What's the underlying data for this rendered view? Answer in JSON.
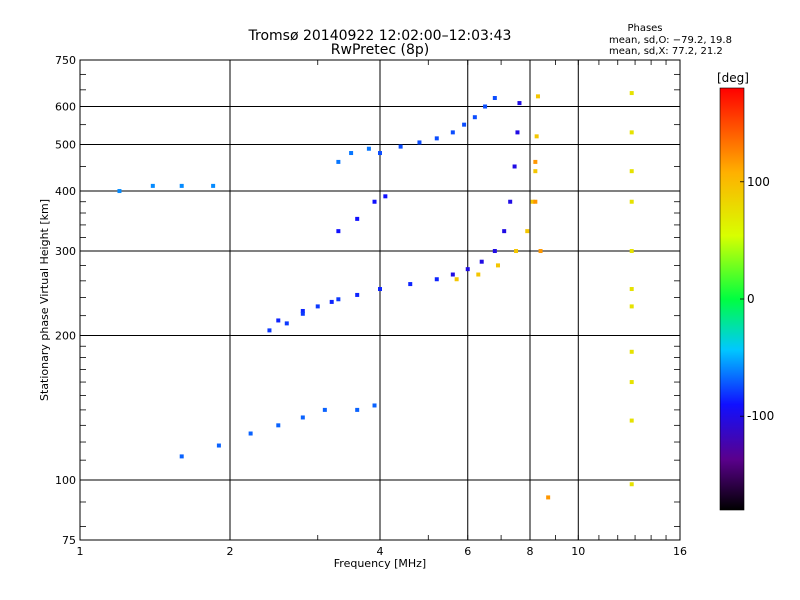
{
  "chart_data": {
    "type": "scatter",
    "title": "Tromsø 20140922 12:02:00–12:03:43",
    "subtitle": "RwPretec (8p)",
    "stats": {
      "heading": "Phases",
      "line_o": "mean, sd,O: −79.2, 19.8",
      "line_x": "mean, sd,X:  77.2, 21.2"
    },
    "xlabel": "Frequency [MHz]",
    "ylabel": "Stationary phase Virtual Height [km]",
    "xscale": "log",
    "yscale": "log",
    "xlim": [
      1,
      16
    ],
    "ylim": [
      75,
      750
    ],
    "xticks": [
      1,
      2,
      4,
      6,
      8,
      10,
      16
    ],
    "xtick_labels": [
      "1",
      "2",
      "4",
      "6",
      "8",
      "10",
      "16"
    ],
    "yticks": [
      75,
      100,
      200,
      300,
      400,
      500,
      600,
      750
    ],
    "ytick_labels": [
      "75",
      "100",
      "200",
      "300",
      "400",
      "500",
      "600",
      "750"
    ],
    "grid": true,
    "colorbar": {
      "label": "[deg]",
      "range": [
        -180,
        180
      ],
      "ticks": [
        100,
        0,
        -100
      ],
      "tick_labels": [
        "100",
        "0",
        "-100"
      ]
    },
    "series": [
      {
        "color_deg": -75,
        "points": [
          [
            4.0,
            480
          ],
          [
            4.4,
            495
          ],
          [
            4.8,
            505
          ],
          [
            5.2,
            515
          ],
          [
            5.6,
            530
          ],
          [
            5.9,
            550
          ],
          [
            6.2,
            570
          ],
          [
            6.5,
            600
          ],
          [
            6.8,
            625
          ]
        ]
      },
      {
        "color_deg": -100,
        "points": [
          [
            5.6,
            268
          ],
          [
            6.0,
            275
          ],
          [
            6.4,
            285
          ],
          [
            6.8,
            300
          ],
          [
            7.1,
            330
          ],
          [
            7.3,
            380
          ],
          [
            7.45,
            450
          ],
          [
            7.55,
            530
          ],
          [
            7.62,
            610
          ]
        ]
      },
      {
        "color_deg": 95,
        "points": [
          [
            5.7,
            262
          ],
          [
            6.3,
            268
          ],
          [
            6.9,
            280
          ],
          [
            7.5,
            300
          ],
          [
            7.9,
            330
          ],
          [
            8.1,
            380
          ],
          [
            8.2,
            440
          ],
          [
            8.25,
            520
          ],
          [
            8.3,
            630
          ]
        ]
      },
      {
        "color_deg": -85,
        "points": [
          [
            2.5,
            215
          ],
          [
            2.8,
            225
          ],
          [
            3.2,
            235
          ],
          [
            3.6,
            243
          ],
          [
            4.0,
            250
          ],
          [
            4.6,
            256
          ],
          [
            5.2,
            262
          ]
        ]
      },
      {
        "color_deg": -80,
        "points": [
          [
            2.4,
            205
          ],
          [
            2.6,
            212
          ],
          [
            2.8,
            222
          ],
          [
            3.0,
            230
          ],
          [
            3.3,
            238
          ]
        ]
      },
      {
        "color_deg": -90,
        "points": [
          [
            3.3,
            330
          ],
          [
            3.6,
            350
          ],
          [
            3.9,
            380
          ],
          [
            4.1,
            390
          ]
        ]
      },
      {
        "color_deg": -65,
        "points": [
          [
            3.3,
            460
          ],
          [
            3.5,
            480
          ],
          [
            3.8,
            490
          ]
        ]
      },
      {
        "color_deg": -70,
        "points": [
          [
            1.6,
            112
          ],
          [
            1.9,
            118
          ],
          [
            2.2,
            125
          ],
          [
            2.5,
            130
          ],
          [
            2.8,
            135
          ],
          [
            3.1,
            140
          ],
          [
            3.6,
            140
          ],
          [
            3.9,
            143
          ]
        ]
      },
      {
        "color_deg": -60,
        "points": [
          [
            1.2,
            400
          ],
          [
            1.4,
            410
          ],
          [
            1.6,
            410
          ],
          [
            1.85,
            410
          ]
        ]
      },
      {
        "color_deg": 75,
        "points": [
          [
            12.8,
            640
          ],
          [
            12.8,
            530
          ],
          [
            12.8,
            440
          ],
          [
            12.8,
            380
          ],
          [
            12.8,
            300
          ],
          [
            12.8,
            250
          ],
          [
            12.8,
            230
          ],
          [
            12.8,
            185
          ],
          [
            12.8,
            160
          ],
          [
            12.8,
            133
          ],
          [
            12.8,
            98
          ]
        ]
      },
      {
        "color_deg": 120,
        "points": [
          [
            8.2,
            460
          ],
          [
            8.2,
            380
          ],
          [
            8.4,
            300
          ],
          [
            8.7,
            92
          ]
        ]
      }
    ]
  }
}
